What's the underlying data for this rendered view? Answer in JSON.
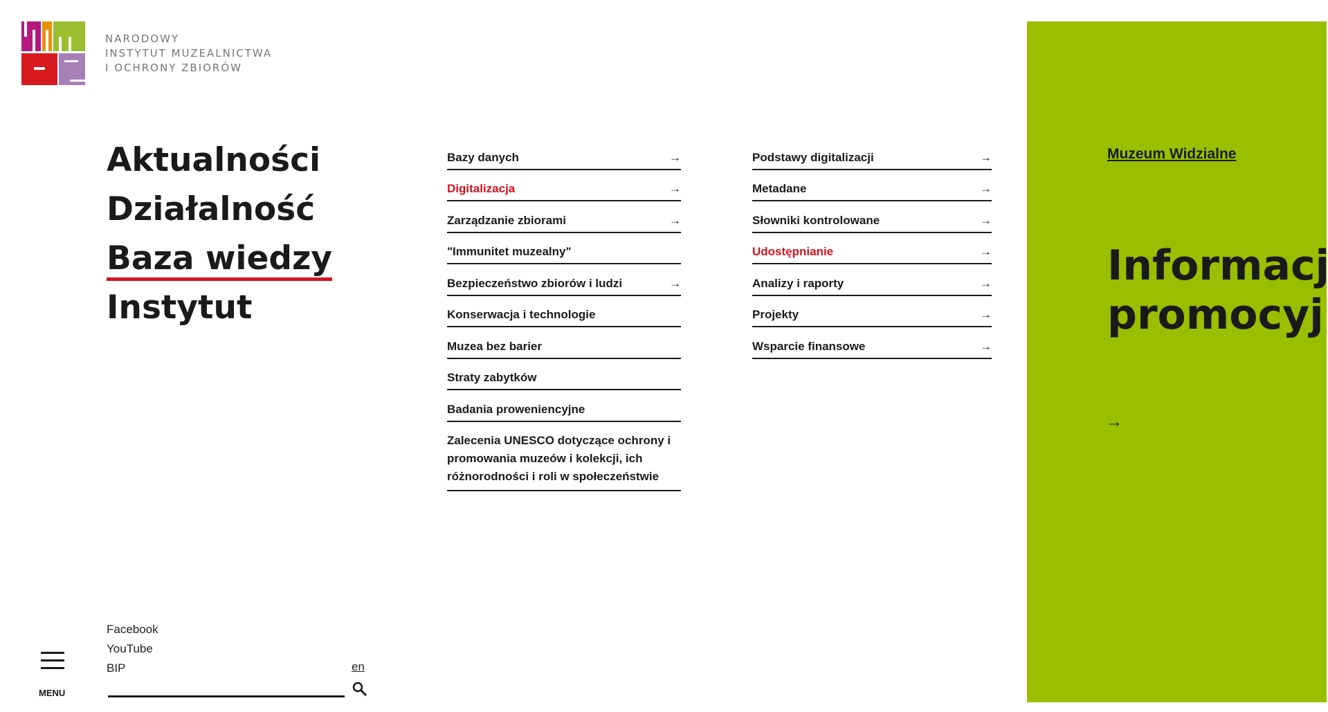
{
  "logo": {
    "text_lines": [
      "NARODOWY",
      "INSTYTUT MUZEALNICTWA",
      "I OCHRONY ZBIORÓW"
    ],
    "colors": [
      "#b5197f",
      "#e8920c",
      "#9abe2d",
      "#d71920",
      "#a680b7"
    ]
  },
  "main_nav": [
    {
      "label": "Aktualności"
    },
    {
      "label": "Działalność"
    },
    {
      "label": "Baza wiedzy",
      "active": true
    },
    {
      "label": "Instytut"
    }
  ],
  "column1": [
    {
      "label": "Bazy danych",
      "arrow": true
    },
    {
      "label": "Digitalizacja",
      "arrow": true,
      "active": true
    },
    {
      "label": "Zarządzanie zbiorami",
      "arrow": true
    },
    {
      "label": "\"Immunitet muzealny\"",
      "arrow": false
    },
    {
      "label": "Bezpieczeństwo zbiorów i ludzi",
      "arrow": true
    },
    {
      "label": "Konserwacja i technologie",
      "arrow": false
    },
    {
      "label": "Muzea bez barier",
      "arrow": false
    },
    {
      "label": "Straty zabytków",
      "arrow": false
    },
    {
      "label": "Badania proweniencyjne",
      "arrow": false
    },
    {
      "label": "Zalecenia UNESCO dotyczące ochrony i promowania muzeów i kolekcji, ich różnorodności i roli w społeczeństwie",
      "arrow": false
    }
  ],
  "column2": [
    {
      "label": "Podstawy digitalizacji",
      "arrow": true
    },
    {
      "label": "Metadane",
      "arrow": true
    },
    {
      "label": "Słowniki kontrolowane",
      "arrow": true
    },
    {
      "label": "Udostępnianie",
      "arrow": true,
      "active": true
    },
    {
      "label": "Analizy i raporty",
      "arrow": true
    },
    {
      "label": "Projekty",
      "arrow": true
    },
    {
      "label": "Wsparcie finansowe",
      "arrow": true
    }
  ],
  "promo": {
    "link": "Muzeum Widzialne",
    "title_line1": "Informacje",
    "title_line2": "promocyjne",
    "arrow": "→",
    "bg_color": "#9abe00"
  },
  "social": [
    "Facebook",
    "YouTube",
    "BIP"
  ],
  "lang": "en",
  "search": {
    "value": "",
    "icon": "search-icon"
  },
  "menu": {
    "label": "MENU",
    "icon": "hamburger-icon"
  },
  "arrow_glyph": "→",
  "accent_color": "#d5121f"
}
